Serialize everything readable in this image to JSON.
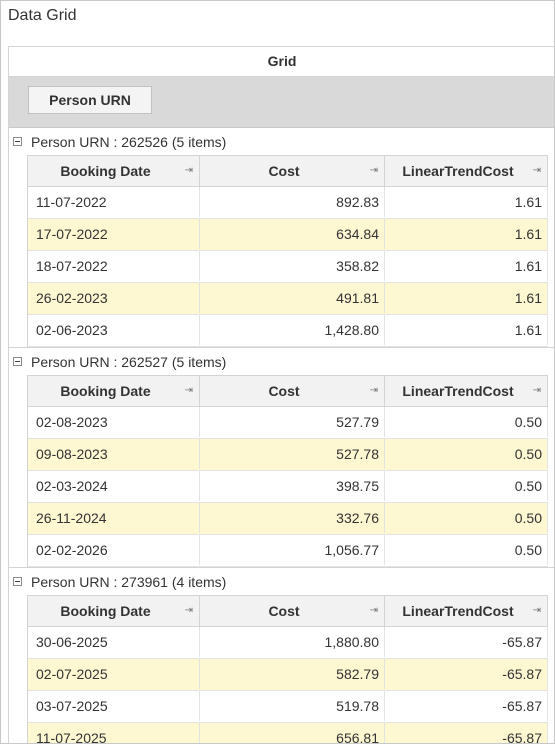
{
  "window": {
    "title": "Data Grid"
  },
  "grid": {
    "caption": "Grid",
    "group_panel": {
      "chip_label": "Person URN"
    },
    "columns": [
      "Booking Date",
      "Cost",
      "LinearTrendCost"
    ],
    "groups": [
      {
        "label": "Person URN : 262526 (5 items)",
        "rows": [
          [
            "11-07-2022",
            "892.83",
            "1.61"
          ],
          [
            "17-07-2022",
            "634.84",
            "1.61"
          ],
          [
            "18-07-2022",
            "358.82",
            "1.61"
          ],
          [
            "26-02-2023",
            "491.81",
            "1.61"
          ],
          [
            "02-06-2023",
            "1,428.80",
            "1.61"
          ]
        ]
      },
      {
        "label": "Person URN : 262527 (5 items)",
        "rows": [
          [
            "02-08-2023",
            "527.79",
            "0.50"
          ],
          [
            "09-08-2023",
            "527.78",
            "0.50"
          ],
          [
            "02-03-2024",
            "398.75",
            "0.50"
          ],
          [
            "26-11-2024",
            "332.76",
            "0.50"
          ],
          [
            "02-02-2026",
            "1,056.77",
            "0.50"
          ]
        ]
      },
      {
        "label": "Person URN : 273961 (4 items)",
        "rows": [
          [
            "30-06-2025",
            "1,880.80",
            "-65.87"
          ],
          [
            "02-07-2025",
            "582.79",
            "-65.87"
          ],
          [
            "03-07-2025",
            "519.78",
            "-65.87"
          ],
          [
            "11-07-2025",
            "656.81",
            "-65.87"
          ]
        ]
      }
    ],
    "colors": {
      "alt_row": "#fdf7d2",
      "group_panel": "#d9d9d9",
      "header": "#f2f2f2"
    }
  }
}
